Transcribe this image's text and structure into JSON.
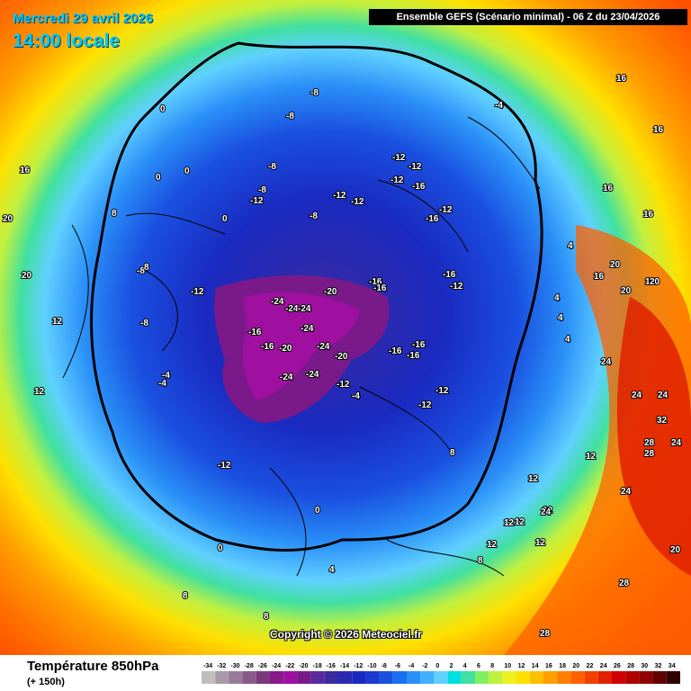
{
  "header": {
    "date": "Mercredi 29 avril 2026",
    "time": "14:00 locale",
    "ensemble": "Ensemble GEFS  (Scénario minimal) - 06 Z du 23/04/2026"
  },
  "copyright": "Copyright © 2026 Meteociel.fr",
  "footer": {
    "variable": "Température 850hPa",
    "lead": "(+ 150h)"
  },
  "legend": {
    "ticks": [
      "-34",
      "-32",
      "-30",
      "-28",
      "-26",
      "-24",
      "-22",
      "-20",
      "-18",
      "-16",
      "-14",
      "-12",
      "-10",
      "-8",
      "-6",
      "-4",
      "-2",
      "0",
      "2",
      "4",
      "6",
      "8",
      "10",
      "12",
      "14",
      "16",
      "18",
      "20",
      "22",
      "24",
      "26",
      "28",
      "30",
      "32",
      "34"
    ],
    "colors": [
      "#bfbfbf",
      "#a89aa8",
      "#9a7a9a",
      "#8a5a8a",
      "#7a3a7a",
      "#8a1a8a",
      "#a010a0",
      "#7a1a8a",
      "#5a2a9a",
      "#3a2aa0",
      "#2a2ab0",
      "#1a2ac0",
      "#1a3ad0",
      "#1a50e0",
      "#1a70f0",
      "#2a90f8",
      "#40b0ff",
      "#60d0ff",
      "#00e0e0",
      "#40e0a0",
      "#80f060",
      "#c0f040",
      "#f0f020",
      "#ffe000",
      "#ffc000",
      "#ffa000",
      "#ff8000",
      "#ff6000",
      "#f04000",
      "#e02000",
      "#d00000",
      "#b00000",
      "#900000",
      "#600000",
      "#300000"
    ]
  },
  "map_labels": [
    {
      "t": "-8"
    },
    {
      "t": "-8"
    },
    {
      "t": "-8"
    },
    {
      "t": "-8"
    },
    {
      "t": "-8"
    },
    {
      "t": "-8"
    },
    {
      "t": "-8"
    },
    {
      "t": "-12"
    },
    {
      "t": "-12"
    },
    {
      "t": "-12"
    },
    {
      "t": "-12"
    },
    {
      "t": "-12"
    },
    {
      "t": "-12"
    },
    {
      "t": "-12"
    },
    {
      "t": "-12"
    },
    {
      "t": "-12"
    },
    {
      "t": "-12"
    },
    {
      "t": "-12"
    },
    {
      "t": "-12"
    },
    {
      "t": "-12"
    },
    {
      "t": "-16"
    },
    {
      "t": "-16"
    },
    {
      "t": "-16"
    },
    {
      "t": "-16"
    },
    {
      "t": "-16"
    },
    {
      "t": "-16"
    },
    {
      "t": "-16"
    },
    {
      "t": "-16"
    },
    {
      "t": "-16"
    },
    {
      "t": "-16"
    },
    {
      "t": "-20"
    },
    {
      "t": "-20"
    },
    {
      "t": "-20"
    },
    {
      "t": "-24"
    },
    {
      "t": "-24"
    },
    {
      "t": "-24"
    },
    {
      "t": "-24"
    },
    {
      "t": "-24"
    },
    {
      "t": "-24"
    },
    {
      "t": "-24"
    },
    {
      "t": "-4"
    },
    {
      "t": "-4"
    },
    {
      "t": "-4"
    },
    {
      "t": "-4"
    },
    {
      "t": "0"
    },
    {
      "t": "0"
    },
    {
      "t": "0"
    },
    {
      "t": "0"
    },
    {
      "t": "0"
    },
    {
      "t": "0"
    },
    {
      "t": "4"
    },
    {
      "t": "4"
    },
    {
      "t": "4"
    },
    {
      "t": "4"
    },
    {
      "t": "4"
    },
    {
      "t": "8"
    },
    {
      "t": "8"
    },
    {
      "t": "8"
    },
    {
      "t": "8"
    },
    {
      "t": "8"
    },
    {
      "t": "8"
    },
    {
      "t": "12"
    },
    {
      "t": "12"
    },
    {
      "t": "12"
    },
    {
      "t": "12"
    },
    {
      "t": "12"
    },
    {
      "t": "12"
    },
    {
      "t": "12"
    },
    {
      "t": "12"
    },
    {
      "t": "12"
    },
    {
      "t": "16"
    },
    {
      "t": "16"
    },
    {
      "t": "16"
    },
    {
      "t": "16"
    },
    {
      "t": "16"
    },
    {
      "t": "16"
    },
    {
      "t": "16"
    },
    {
      "t": "20"
    },
    {
      "t": "20"
    },
    {
      "t": "20"
    },
    {
      "t": "20"
    },
    {
      "t": "20"
    },
    {
      "t": "20"
    },
    {
      "t": "24"
    },
    {
      "t": "24"
    },
    {
      "t": "24"
    },
    {
      "t": "24"
    },
    {
      "t": "24"
    },
    {
      "t": "24"
    },
    {
      "t": "28"
    },
    {
      "t": "28"
    },
    {
      "t": "28"
    },
    {
      "t": "28"
    },
    {
      "t": "32"
    }
  ]
}
